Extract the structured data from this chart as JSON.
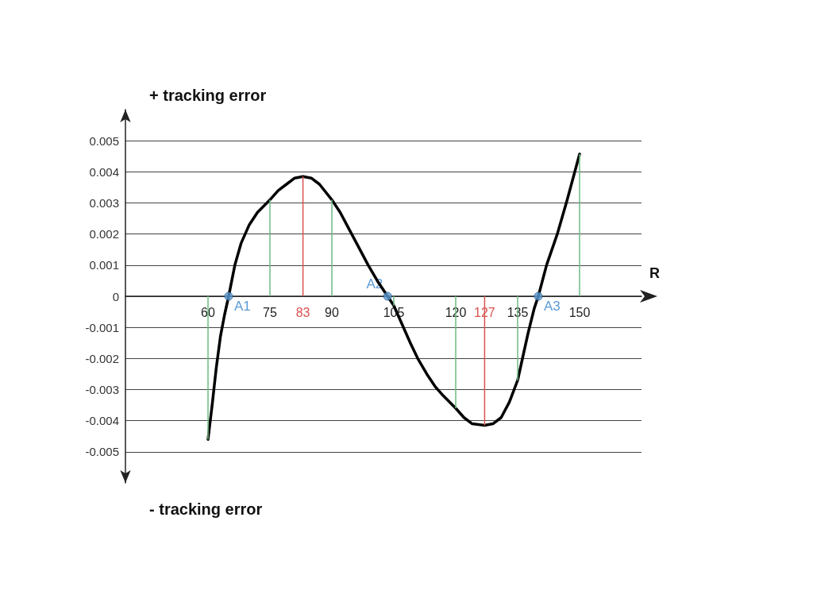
{
  "chart_data": {
    "type": "line",
    "xlabel": "R",
    "xlim": [
      40,
      165
    ],
    "ylim": [
      -0.006,
      0.006
    ],
    "xticks": [
      60,
      75,
      83,
      90,
      105,
      120,
      127,
      135,
      150
    ],
    "yticks": [
      -0.005,
      -0.004,
      -0.003,
      -0.002,
      -0.001,
      0,
      0.001,
      0.002,
      0.003,
      0.004,
      0.005
    ],
    "grid": "y",
    "series": [
      {
        "color": "#000000",
        "marker": "none",
        "line_style": "solid",
        "x": [
          60,
          61,
          62,
          63,
          64,
          65,
          66.5,
          68,
          70,
          72,
          75,
          77,
          79,
          81,
          83,
          85,
          87,
          90,
          92,
          94,
          96,
          98.8,
          101,
          103.5,
          105,
          107,
          109,
          110.8,
          113,
          115,
          117,
          120,
          122,
          124,
          127,
          129,
          131,
          133,
          135,
          136,
          137.5,
          139,
          140,
          142,
          144.6,
          147,
          150
        ],
        "values": [
          -0.0046,
          -0.0035,
          -0.0023,
          -0.0013,
          -0.0006,
          0,
          0.001,
          0.0017,
          0.0023,
          0.0027,
          0.0031,
          0.0034,
          0.0036,
          0.0038,
          0.00385,
          0.0038,
          0.0036,
          0.0031,
          0.0027,
          0.0022,
          0.0017,
          0.001,
          0.0005,
          0,
          -0.0003,
          -0.0009,
          -0.0015,
          -0.002,
          -0.0025,
          -0.0029,
          -0.0032,
          -0.0036,
          -0.0039,
          -0.0041,
          -0.00415,
          -0.0041,
          -0.0039,
          -0.0034,
          -0.0027,
          -0.0021,
          -0.0012,
          -0.0004,
          0,
          0.001,
          0.002,
          0.0031,
          0.00457
        ]
      },
      {
        "type": "bar",
        "x": [
          60,
          75,
          83,
          90,
          105,
          120,
          127,
          135,
          150
        ],
        "values": [
          -0.0046,
          0.0031,
          0.00385,
          0.0031,
          -0.0003,
          -0.0036,
          -0.00415,
          -0.0027,
          0.00457
        ],
        "colors": [
          "#6dbb82",
          "#6dbb82",
          "#d9534f",
          "#6dbb82",
          "#6dbb82",
          "#6dbb82",
          "#d9534f",
          "#6dbb82",
          "#6dbb82"
        ]
      },
      {
        "type": "scatter",
        "color": "#5b9bd5",
        "marker": "circle",
        "x": [
          65,
          103.5,
          140
        ],
        "values": [
          0,
          0,
          0
        ]
      }
    ],
    "annotations": [
      "+ tracking error",
      "- tracking error",
      {
        "text": "A1",
        "x": 65,
        "y": 0
      },
      {
        "text": "A2",
        "x": 103.5,
        "y": 0
      },
      {
        "text": "A3",
        "x": 140,
        "y": 0
      }
    ]
  }
}
